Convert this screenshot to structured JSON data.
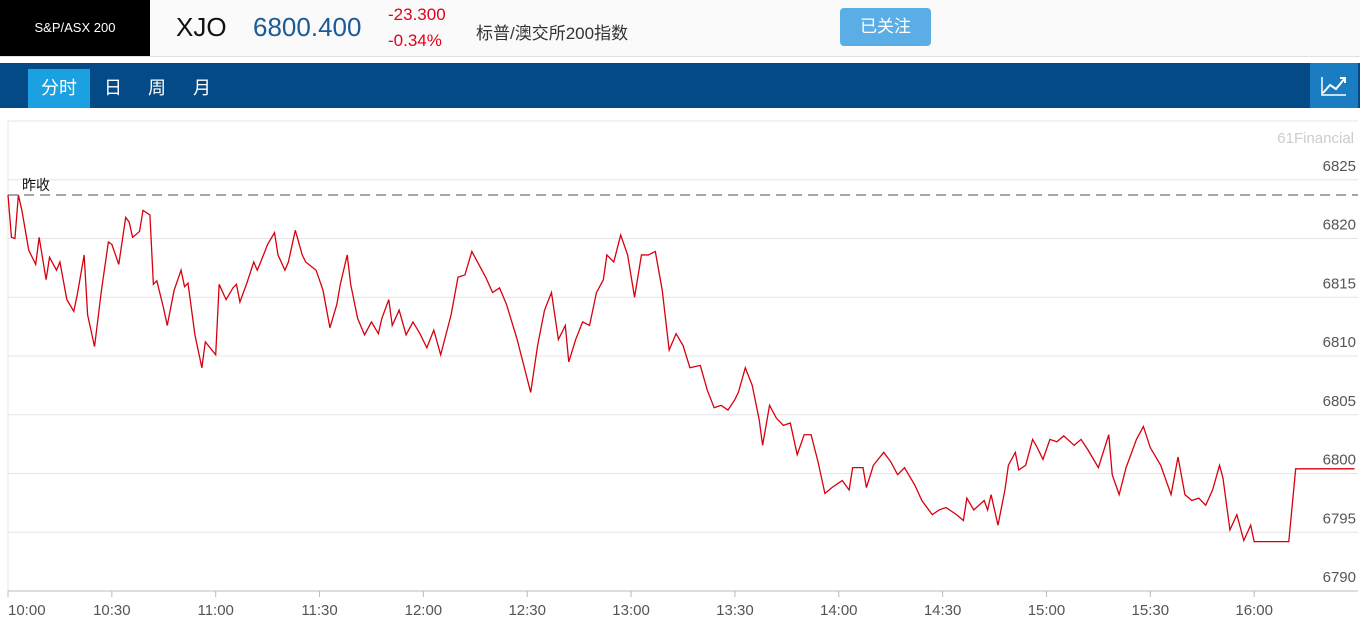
{
  "header": {
    "index_name": "S&P/ASX 200",
    "symbol": "XJO",
    "price": "6800.400",
    "change": "-23.300",
    "change_percent": "-0.34%",
    "name": "标普/澳交所200指数",
    "follow_button": "已关注"
  },
  "nav": {
    "tabs": [
      "分时",
      "日",
      "周",
      "月"
    ]
  },
  "chart_data": {
    "type": "line",
    "watermark": "61Financial",
    "reference_line": {
      "label": "昨收",
      "value": 6823.7
    },
    "xlim": [
      "10:00",
      "16:30"
    ],
    "xticks": [
      "10:00",
      "10:30",
      "11:00",
      "11:30",
      "12:00",
      "12:30",
      "13:00",
      "13:30",
      "14:00",
      "14:30",
      "15:00",
      "15:30",
      "16:00"
    ],
    "ylim": [
      6790,
      6830
    ],
    "yticks": [
      6790,
      6795,
      6800,
      6805,
      6810,
      6815,
      6820,
      6825
    ],
    "grid": true,
    "series": [
      {
        "color": "#d7000f",
        "x": [
          "10:00",
          "10:01",
          "10:02",
          "10:03",
          "10:04",
          "10:06",
          "10:08",
          "10:09",
          "10:11",
          "10:12",
          "10:14",
          "10:15",
          "10:17",
          "10:19",
          "10:20",
          "10:22",
          "10:23",
          "10:25",
          "10:27",
          "10:29",
          "10:30",
          "10:32",
          "10:34",
          "10:35",
          "10:36",
          "10:38",
          "10:39",
          "10:41",
          "10:42",
          "10:43",
          "10:45",
          "10:46",
          "10:48",
          "10:50",
          "10:51",
          "10:52",
          "10:54",
          "10:56",
          "10:57",
          "11:00",
          "11:01",
          "11:03",
          "11:05",
          "11:06",
          "11:07",
          "11:09",
          "11:11",
          "11:12",
          "11:13",
          "11:15",
          "11:17",
          "11:18",
          "11:20",
          "11:21",
          "11:23",
          "11:25",
          "11:26",
          "11:29",
          "11:31",
          "11:33",
          "11:35",
          "11:36",
          "11:38",
          "11:39",
          "11:41",
          "11:43",
          "11:45",
          "11:47",
          "11:48",
          "11:50",
          "11:51",
          "11:53",
          "11:55",
          "11:57",
          "11:59",
          "12:01",
          "12:03",
          "12:05",
          "12:08",
          "12:10",
          "12:12",
          "12:14",
          "12:16",
          "12:18",
          "12:20",
          "12:22",
          "12:24",
          "12:27",
          "12:29",
          "12:31",
          "12:33",
          "12:35",
          "12:37",
          "12:39",
          "12:41",
          "12:42",
          "12:44",
          "12:46",
          "12:48",
          "12:50",
          "12:52",
          "12:53",
          "12:55",
          "12:57",
          "12:59",
          "13:01",
          "13:03",
          "13:05",
          "13:07",
          "13:09",
          "13:11",
          "13:13",
          "13:15",
          "13:17",
          "13:20",
          "13:22",
          "13:24",
          "13:26",
          "13:28",
          "13:30",
          "13:31",
          "13:33",
          "13:35",
          "13:37",
          "13:38",
          "13:40",
          "13:42",
          "13:44",
          "13:46",
          "13:48",
          "13:50",
          "13:52",
          "13:54",
          "13:56",
          "13:58",
          "14:01",
          "14:03",
          "14:04",
          "14:07",
          "14:08",
          "14:10",
          "14:13",
          "14:15",
          "14:17",
          "14:19",
          "14:22",
          "14:24",
          "14:27",
          "14:29",
          "14:31",
          "14:34",
          "14:36",
          "14:37",
          "14:39",
          "14:42",
          "14:43",
          "14:44",
          "14:46",
          "14:48",
          "14:49",
          "14:51",
          "14:52",
          "14:54",
          "14:56",
          "14:57",
          "14:59",
          "15:01",
          "15:03",
          "15:05",
          "15:08",
          "15:10",
          "15:12",
          "15:15",
          "15:18",
          "15:19",
          "15:21",
          "15:23",
          "15:26",
          "15:28",
          "15:30",
          "15:33",
          "15:36",
          "15:38",
          "15:40",
          "15:42",
          "15:44",
          "15:46",
          "15:48",
          "15:50",
          "15:51",
          "15:53",
          "15:55",
          "15:57",
          "15:59",
          "16:00",
          "16:10",
          "16:12",
          "16:29"
        ],
        "values": [
          6823.7,
          6820.1,
          6820,
          6823.7,
          6822.4,
          6819.0,
          6817.8,
          6820.1,
          6816.5,
          6818.4,
          6817.3,
          6818.0,
          6814.8,
          6813.8,
          6815.2,
          6818.6,
          6813.5,
          6810.8,
          6815.6,
          6819.7,
          6819.5,
          6817.8,
          6821.8,
          6821.4,
          6820.1,
          6820.6,
          6822.4,
          6822.0,
          6816.1,
          6816.4,
          6814.0,
          6812.6,
          6815.6,
          6817.3,
          6815.9,
          6816.2,
          6811.8,
          6809.0,
          6811.2,
          6810.1,
          6816.1,
          6814.8,
          6815.8,
          6816.1,
          6814.6,
          6816.2,
          6818.0,
          6817.3,
          6818.0,
          6819.5,
          6820.5,
          6818.6,
          6817.3,
          6818.0,
          6820.7,
          6818.6,
          6818.0,
          6817.3,
          6815.6,
          6812.4,
          6814.4,
          6816.1,
          6818.6,
          6816.1,
          6813.2,
          6811.8,
          6812.9,
          6811.9,
          6813.2,
          6814.8,
          6812.6,
          6813.9,
          6811.8,
          6812.9,
          6811.9,
          6810.7,
          6812.2,
          6810.1,
          6813.5,
          6816.7,
          6816.9,
          6818.9,
          6817.8,
          6816.7,
          6815.4,
          6815.8,
          6814.4,
          6811.5,
          6809.2,
          6806.9,
          6810.9,
          6813.9,
          6815.4,
          6811.4,
          6812.6,
          6809.5,
          6811.4,
          6812.9,
          6812.6,
          6815.4,
          6816.5,
          6818.6,
          6818.0,
          6820.3,
          6818.6,
          6815.0,
          6818.6,
          6818.6,
          6818.9,
          6815.6,
          6810.5,
          6811.9,
          6810.9,
          6809.0,
          6809.2,
          6807.1,
          6805.6,
          6805.8,
          6805.4,
          6806.3,
          6806.9,
          6809.0,
          6807.5,
          6804.6,
          6802.4,
          6805.8,
          6804.7,
          6804.1,
          6804.3,
          6801.6,
          6803.3,
          6803.3,
          6801.0,
          6798.3,
          6798.8,
          6799.4,
          6798.6,
          6800.5,
          6800.5,
          6798.8,
          6800.7,
          6801.8,
          6801.0,
          6799.9,
          6800.5,
          6799.0,
          6797.7,
          6796.5,
          6796.9,
          6797.1,
          6796.5,
          6796.0,
          6797.9,
          6796.9,
          6797.7,
          6796.9,
          6798.2,
          6795.6,
          6798.6,
          6800.7,
          6801.8,
          6800.3,
          6800.7,
          6802.9,
          6802.4,
          6801.2,
          6802.9,
          6802.7,
          6803.2,
          6802.4,
          6802.9,
          6802.0,
          6800.5,
          6803.3,
          6799.9,
          6798.2,
          6800.5,
          6802.9,
          6804.0,
          6802.2,
          6800.7,
          6798.2,
          6801.4,
          6798.2,
          6797.7,
          6797.9,
          6797.3,
          6798.6,
          6800.7,
          6799.6,
          6795.2,
          6796.5,
          6794.3,
          6795.6,
          6794.2,
          6794.2,
          6800.4,
          6800.4
        ]
      }
    ]
  }
}
